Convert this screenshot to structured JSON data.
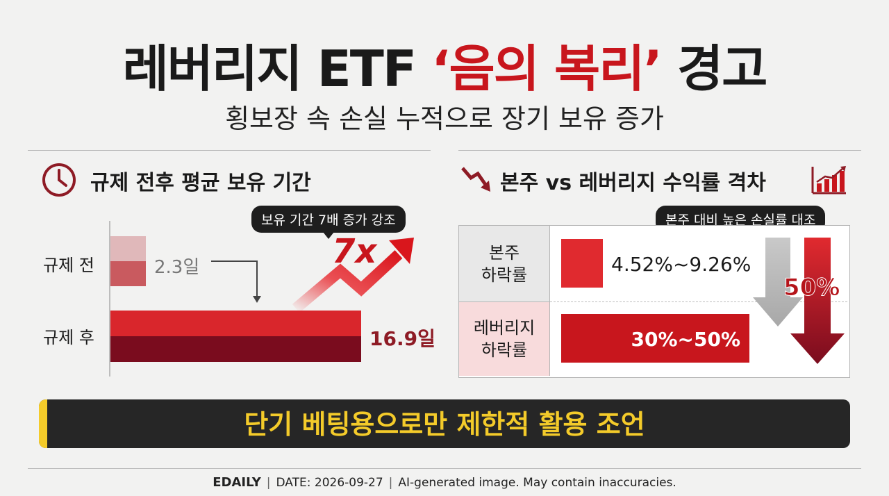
{
  "title": {
    "part1": "레버리지 ETF ",
    "highlight": "‘음의 복리’",
    "part2": " 경고"
  },
  "subtitle": "횡보장 속 손실 누적으로 장기 보유 증가",
  "left_panel": {
    "title": "규제 전후 평균 보유 기간",
    "icon": "clock-icon",
    "bubble": "보유 기간 7배 증가 강조",
    "multiplier": "7x",
    "rows": [
      {
        "label": "규제 전",
        "value": "2.3일",
        "days": 2.3
      },
      {
        "label": "규제 후",
        "value": "16.9일",
        "days": 16.9
      }
    ]
  },
  "right_panel": {
    "title": "본주 vs 레버리지 수익률 격차",
    "icon_left": "downtrend-arrow-icon",
    "icon_right": "bar-chart-icon",
    "bubble": "본주 대비 높은 손실률 대조",
    "highlight": "50%",
    "rows": [
      {
        "label_line1": "본주",
        "label_line2": "하락률",
        "value": "4.52%~9.26%"
      },
      {
        "label_line1": "레버리지",
        "label_line2": "하락률",
        "value": "30%~50%"
      }
    ]
  },
  "banner": "단기 베팅용으로만 제한적 활용 조언",
  "footer": {
    "brand": "EDAILY",
    "date": "DATE: 2026-09-27",
    "disclaimer": "AI-generated image. May contain inaccuracies."
  },
  "colors": {
    "accent": "#c8161d",
    "dark_red": "#7a0c1e",
    "banner_bg": "#262626",
    "banner_text": "#f4cb2a"
  }
}
